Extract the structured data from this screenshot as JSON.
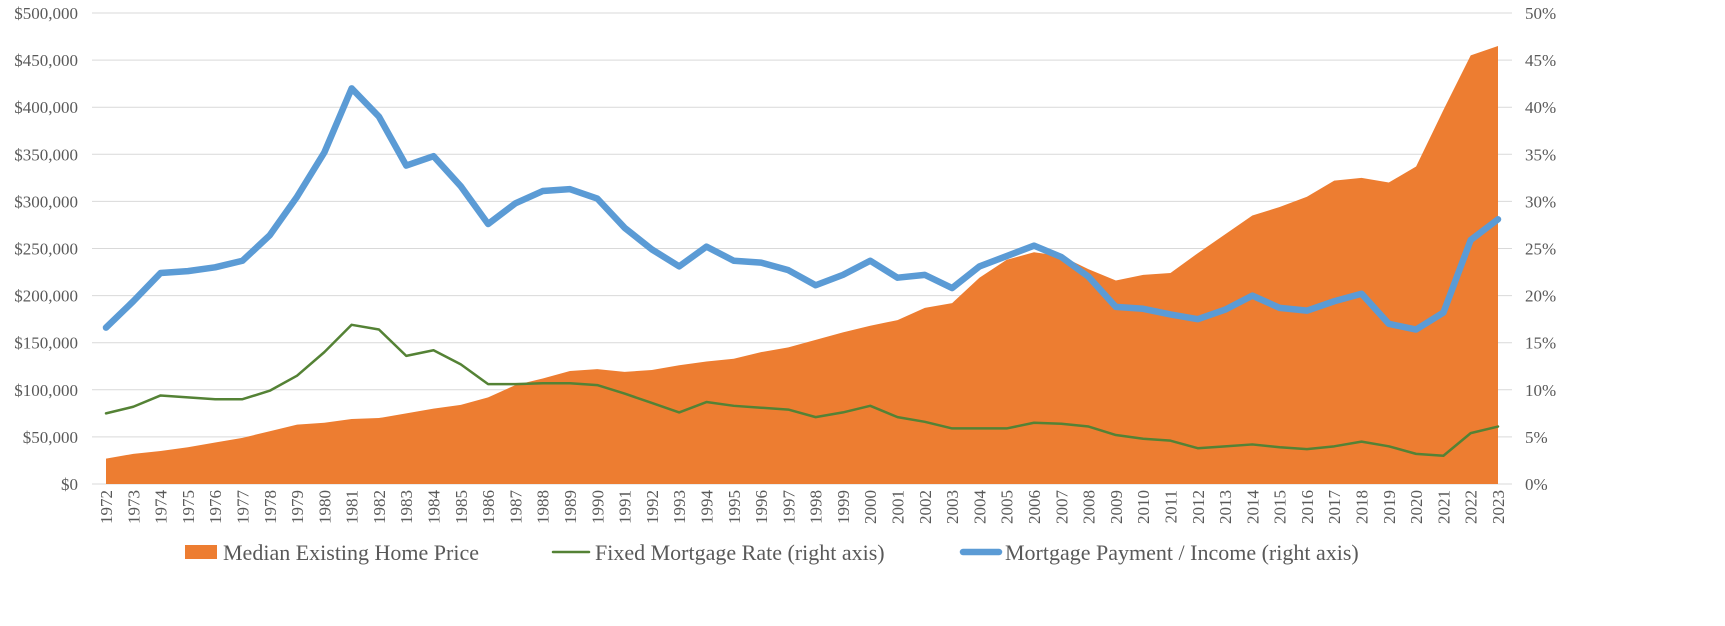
{
  "chart_data": {
    "type": "area",
    "title": "",
    "xlabel": "",
    "ylabel": "",
    "y2label": "",
    "categories": [
      "1972",
      "1973",
      "1974",
      "1975",
      "1976",
      "1977",
      "1978",
      "1979",
      "1980",
      "1981",
      "1982",
      "1983",
      "1984",
      "1985",
      "1986",
      "1987",
      "1988",
      "1989",
      "1990",
      "1991",
      "1992",
      "1993",
      "1994",
      "1995",
      "1996",
      "1997",
      "1998",
      "1999",
      "2000",
      "2001",
      "2002",
      "2003",
      "2004",
      "2005",
      "2006",
      "2007",
      "2008",
      "2009",
      "2010",
      "2011",
      "2012",
      "2013",
      "2014",
      "2015",
      "2016",
      "2017",
      "2018",
      "2019",
      "2020",
      "2021",
      "2022",
      "2023"
    ],
    "ylim": [
      0,
      500000
    ],
    "y2lim": [
      0,
      0.5
    ],
    "y_ticks": [
      "$0",
      "$50,000",
      "$100,000",
      "$150,000",
      "$200,000",
      "$250,000",
      "$300,000",
      "$350,000",
      "$400,000",
      "$450,000",
      "$500,000"
    ],
    "y2_ticks": [
      "0%",
      "5%",
      "10%",
      "15%",
      "20%",
      "25%",
      "30%",
      "35%",
      "40%",
      "45%",
      "50%"
    ],
    "grid": true,
    "legend_position": "bottom",
    "series": [
      {
        "name": "Median Existing Home Price",
        "kind": "area",
        "axis": "left",
        "color": "#ed7d31",
        "values": [
          27000,
          32000,
          35000,
          39000,
          44000,
          49000,
          56000,
          63000,
          65000,
          69000,
          70000,
          75000,
          80000,
          84000,
          92000,
          105000,
          112000,
          120000,
          122000,
          119000,
          121000,
          126000,
          130000,
          133000,
          140000,
          145000,
          153000,
          161000,
          168000,
          174000,
          187000,
          192000,
          219000,
          238000,
          246000,
          242000,
          228000,
          216000,
          222000,
          224000,
          245000,
          265000,
          285000,
          294000,
          305000,
          322000,
          325000,
          320000,
          337000,
          397000,
          455000,
          465000
        ]
      },
      {
        "name": "Fixed Mortgage Rate (right axis)",
        "kind": "line",
        "axis": "right",
        "color": "#548235",
        "values": [
          0.075,
          0.082,
          0.094,
          0.092,
          0.09,
          0.09,
          0.099,
          0.115,
          0.14,
          0.169,
          0.164,
          0.136,
          0.142,
          0.127,
          0.106,
          0.106,
          0.107,
          0.107,
          0.105,
          0.096,
          0.086,
          0.076,
          0.087,
          0.083,
          0.081,
          0.079,
          0.071,
          0.076,
          0.083,
          0.071,
          0.066,
          0.059,
          0.059,
          0.059,
          0.065,
          0.064,
          0.061,
          0.052,
          0.048,
          0.046,
          0.038,
          0.04,
          0.042,
          0.039,
          0.037,
          0.04,
          0.045,
          0.04,
          0.032,
          0.03,
          0.054,
          0.061
        ]
      },
      {
        "name": "Mortgage Payment / Income (right axis)",
        "kind": "line",
        "axis": "right",
        "color": "#5b9bd5",
        "values": [
          0.166,
          0.194,
          0.224,
          0.226,
          0.23,
          0.237,
          0.264,
          0.305,
          0.352,
          0.42,
          0.39,
          0.338,
          0.348,
          0.316,
          0.276,
          0.298,
          0.311,
          0.313,
          0.303,
          0.272,
          0.249,
          0.231,
          0.252,
          0.237,
          0.235,
          0.227,
          0.211,
          0.222,
          0.237,
          0.219,
          0.222,
          0.208,
          0.231,
          0.242,
          0.253,
          0.241,
          0.22,
          0.188,
          0.186,
          0.18,
          0.175,
          0.185,
          0.2,
          0.187,
          0.184,
          0.194,
          0.202,
          0.17,
          0.164,
          0.182,
          0.259,
          0.281
        ]
      }
    ]
  }
}
